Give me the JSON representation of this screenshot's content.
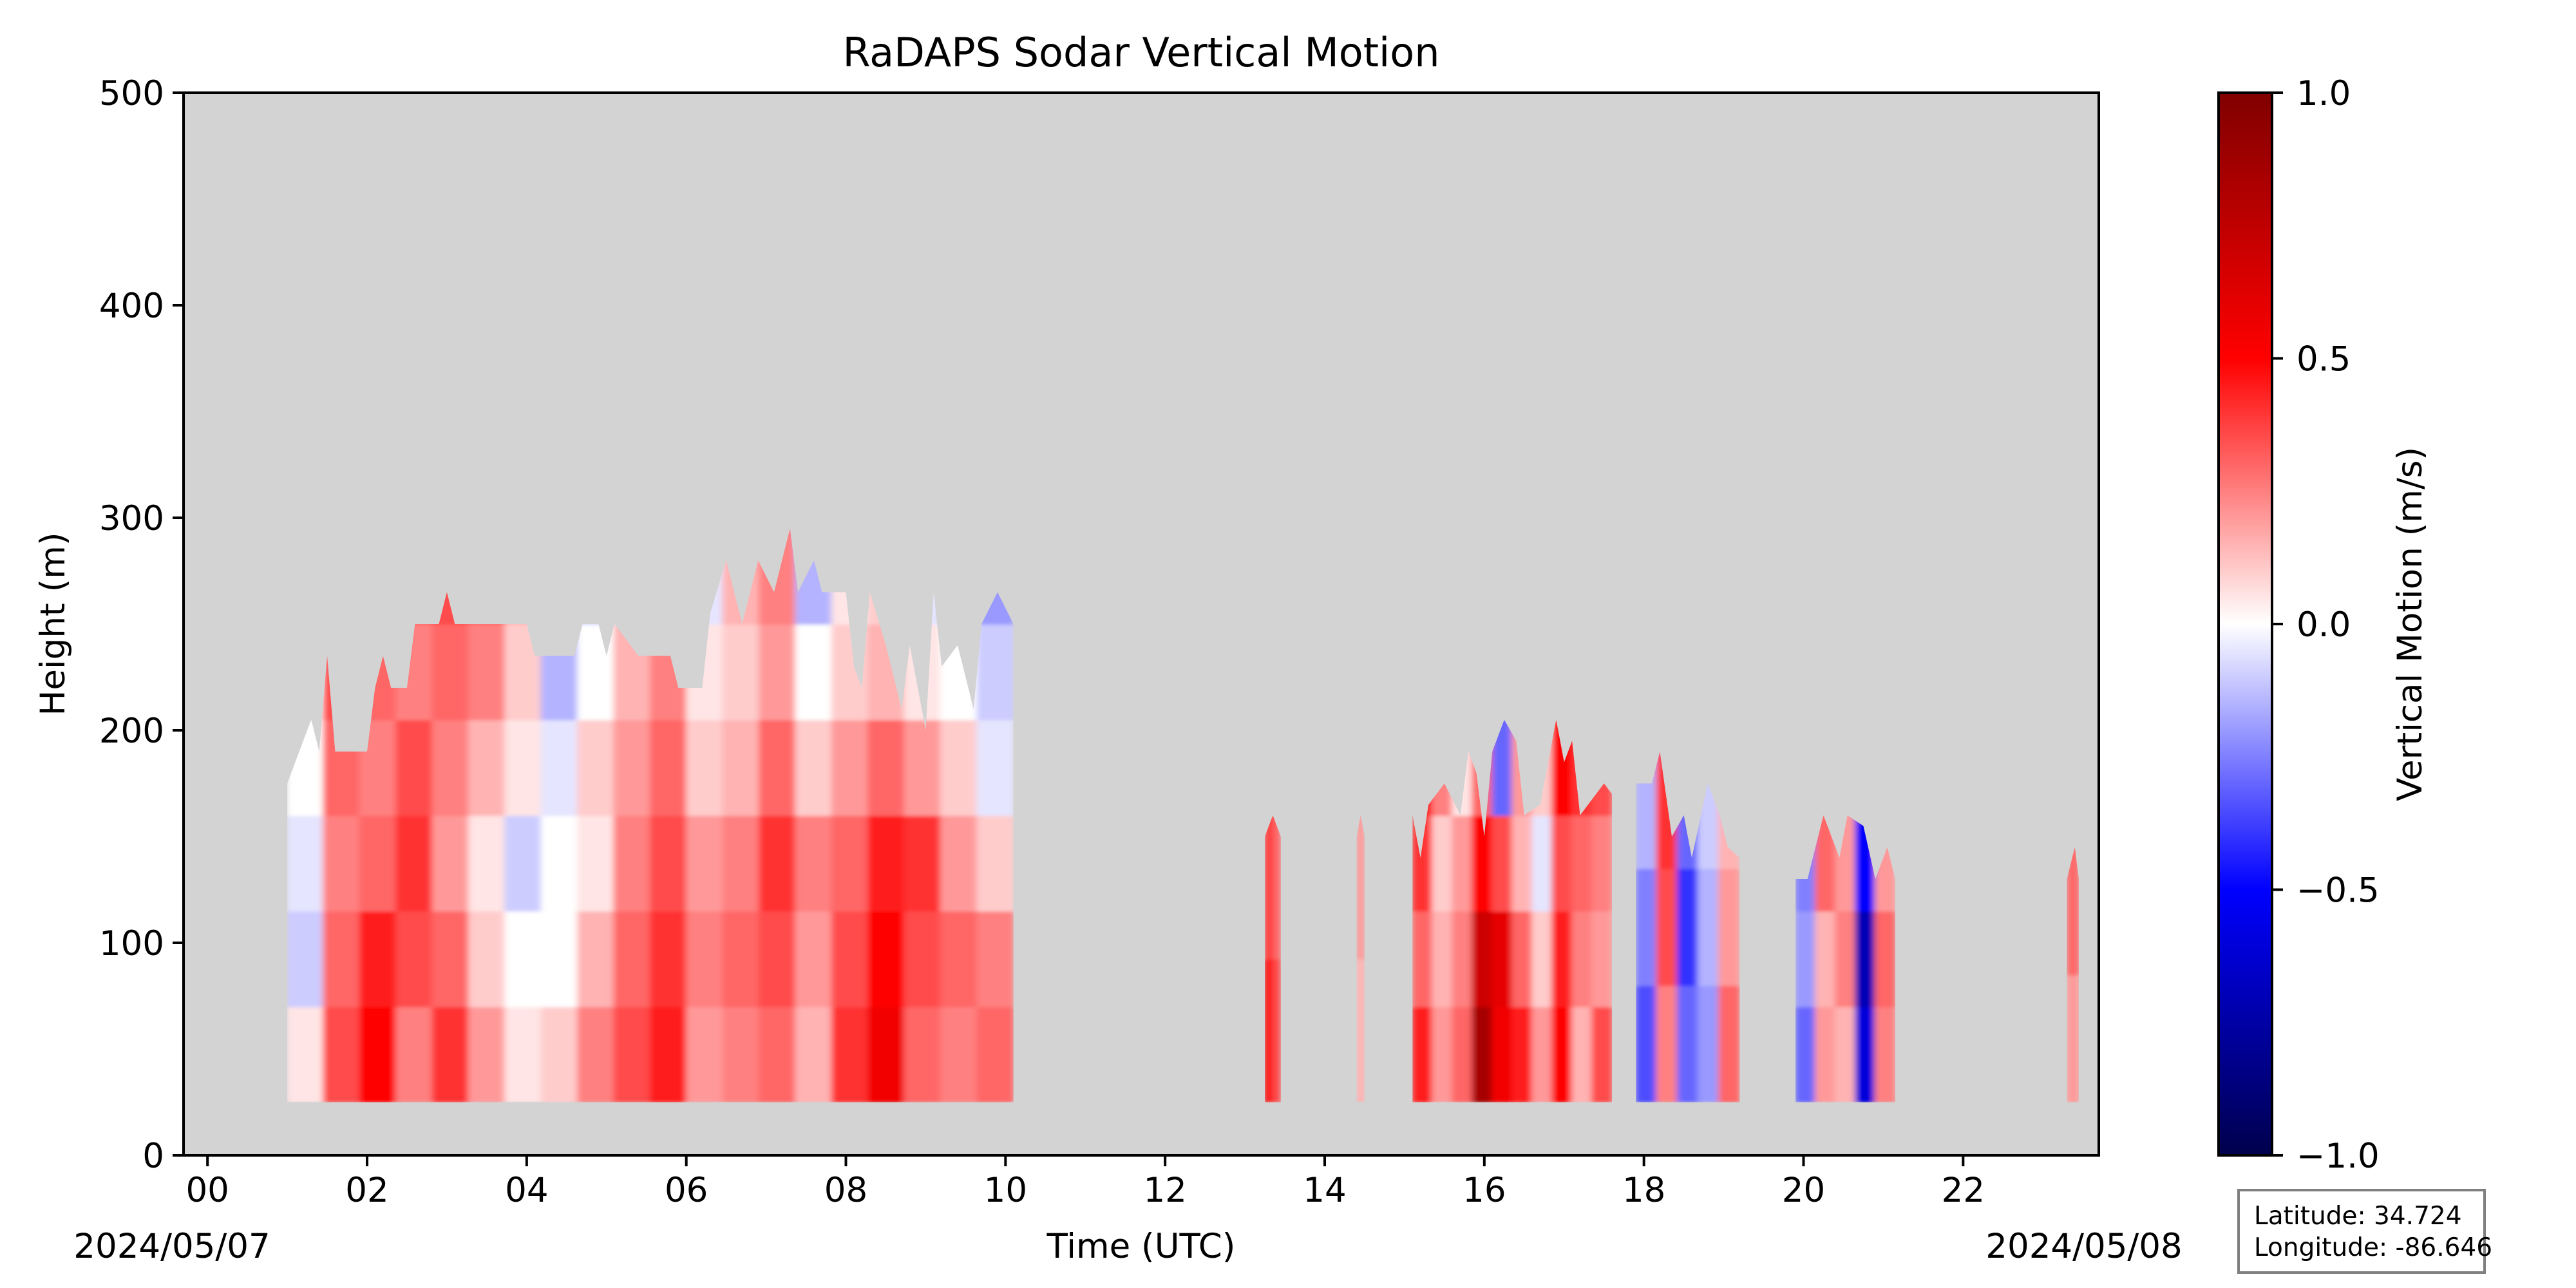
{
  "chart_data": {
    "type": "heatmap",
    "title": "RaDAPS Sodar Vertical Motion",
    "xlabel": "Time (UTC)",
    "ylabel": "Height (m)",
    "x_unit": "hours UTC",
    "xlim": [
      -0.3,
      23.7
    ],
    "ylim": [
      0,
      500
    ],
    "x_ticks": [
      0,
      2,
      4,
      6,
      8,
      10,
      12,
      14,
      16,
      18,
      20,
      22
    ],
    "x_tick_labels": [
      "00",
      "02",
      "04",
      "06",
      "08",
      "10",
      "12",
      "14",
      "16",
      "18",
      "20",
      "22"
    ],
    "y_ticks": [
      0,
      100,
      200,
      300,
      400,
      500
    ],
    "y_tick_labels": [
      "0",
      "100",
      "200",
      "300",
      "400",
      "500"
    ],
    "date_start": "2024/05/07",
    "date_end": "2024/05/08",
    "background_color": "#d3d3d3",
    "colormap": "seismic",
    "colorbar": {
      "label": "Vertical Motion (m/s)",
      "min": -1.0,
      "max": 1.0,
      "ticks": [
        1.0,
        0.5,
        0.0,
        -0.5,
        -1.0
      ],
      "tick_labels": [
        "1.0",
        "0.5",
        "0.0",
        "−0.5",
        "−1.0"
      ],
      "stops": [
        "#00004c",
        "#0000ff",
        "#ffffff",
        "#ff0000",
        "#800000"
      ]
    },
    "data_segments": [
      {
        "t_start": 1.0,
        "t_end": 10.1,
        "h_min": 25,
        "top": [
          [
            1.0,
            175
          ],
          [
            1.2,
            195
          ],
          [
            1.3,
            205
          ],
          [
            1.4,
            190
          ],
          [
            1.5,
            235
          ],
          [
            1.6,
            190
          ],
          [
            2.0,
            190
          ],
          [
            2.1,
            220
          ],
          [
            2.2,
            235
          ],
          [
            2.3,
            220
          ],
          [
            2.5,
            220
          ],
          [
            2.6,
            250
          ],
          [
            2.9,
            250
          ],
          [
            3.0,
            265
          ],
          [
            3.1,
            250
          ],
          [
            4.0,
            250
          ],
          [
            4.1,
            235
          ],
          [
            4.6,
            235
          ],
          [
            4.7,
            250
          ],
          [
            4.9,
            250
          ],
          [
            5.0,
            235
          ],
          [
            5.1,
            250
          ],
          [
            5.3,
            240
          ],
          [
            5.4,
            235
          ],
          [
            5.8,
            235
          ],
          [
            5.9,
            220
          ],
          [
            6.2,
            220
          ],
          [
            6.3,
            255
          ],
          [
            6.5,
            280
          ],
          [
            6.7,
            250
          ],
          [
            6.9,
            280
          ],
          [
            7.1,
            265
          ],
          [
            7.3,
            295
          ],
          [
            7.4,
            265
          ],
          [
            7.6,
            280
          ],
          [
            7.7,
            265
          ],
          [
            8.0,
            265
          ],
          [
            8.1,
            230
          ],
          [
            8.2,
            220
          ],
          [
            8.3,
            265
          ],
          [
            8.5,
            240
          ],
          [
            8.7,
            210
          ],
          [
            8.8,
            240
          ],
          [
            9.0,
            200
          ],
          [
            9.1,
            265
          ],
          [
            9.2,
            230
          ],
          [
            9.4,
            240
          ],
          [
            9.6,
            210
          ],
          [
            9.7,
            250
          ],
          [
            9.9,
            265
          ],
          [
            10.1,
            250
          ]
        ],
        "values": [
          [
            0.05,
            0.35,
            0.5,
            0.25,
            0.4,
            0.2,
            0.05,
            0.1,
            0.25,
            0.35,
            0.45,
            0.2,
            0.25,
            0.3,
            0.15,
            0.4,
            0.55,
            0.3,
            0.25,
            0.3
          ],
          [
            -0.1,
            0.3,
            0.45,
            0.35,
            0.3,
            0.1,
            0.0,
            0.0,
            0.15,
            0.3,
            0.4,
            0.25,
            0.3,
            0.35,
            0.2,
            0.35,
            0.5,
            0.35,
            0.3,
            0.25
          ],
          [
            -0.05,
            0.25,
            0.3,
            0.4,
            0.2,
            0.05,
            -0.1,
            0.0,
            0.05,
            0.25,
            0.35,
            0.2,
            0.25,
            0.4,
            0.25,
            0.3,
            0.45,
            0.4,
            0.2,
            0.1
          ],
          [
            0.0,
            0.3,
            0.25,
            0.35,
            0.25,
            0.15,
            0.05,
            -0.05,
            0.1,
            0.2,
            0.3,
            0.1,
            0.15,
            0.3,
            0.1,
            0.2,
            0.3,
            0.2,
            0.1,
            -0.05
          ],
          [
            0.05,
            0.35,
            0.3,
            0.25,
            0.3,
            0.25,
            0.1,
            -0.15,
            0.0,
            0.15,
            0.25,
            0.05,
            0.1,
            0.2,
            0.0,
            0.1,
            0.15,
            0.05,
            0.0,
            -0.1
          ],
          [
            0.1,
            0.4,
            0.35,
            0.3,
            0.35,
            0.3,
            0.15,
            -0.2,
            -0.1,
            0.05,
            0.2,
            -0.05,
            0.15,
            0.25,
            -0.15,
            0.05,
            0.1,
            -0.05,
            -0.15,
            -0.2
          ]
        ]
      },
      {
        "t_start": 13.25,
        "t_end": 13.45,
        "h_min": 25,
        "top": [
          [
            13.25,
            150
          ],
          [
            13.35,
            160
          ],
          [
            13.45,
            150
          ]
        ],
        "values": [
          [
            0.5,
            0.35
          ],
          [
            0.4,
            0.3
          ]
        ]
      },
      {
        "t_start": 14.4,
        "t_end": 14.5,
        "h_min": 25,
        "top": [
          [
            14.4,
            150
          ],
          [
            14.45,
            160
          ],
          [
            14.5,
            150
          ]
        ],
        "values": [
          [
            0.15
          ],
          [
            0.2
          ]
        ]
      },
      {
        "t_start": 15.1,
        "t_end": 17.6,
        "h_min": 25,
        "top": [
          [
            15.1,
            160
          ],
          [
            15.2,
            140
          ],
          [
            15.3,
            165
          ],
          [
            15.5,
            175
          ],
          [
            15.7,
            160
          ],
          [
            15.8,
            190
          ],
          [
            15.9,
            180
          ],
          [
            16.0,
            150
          ],
          [
            16.1,
            190
          ],
          [
            16.25,
            205
          ],
          [
            16.4,
            195
          ],
          [
            16.5,
            160
          ],
          [
            16.7,
            165
          ],
          [
            16.9,
            205
          ],
          [
            17.0,
            185
          ],
          [
            17.1,
            195
          ],
          [
            17.2,
            160
          ],
          [
            17.5,
            175
          ],
          [
            17.6,
            170
          ]
        ],
        "values": [
          [
            0.45,
            0.2,
            0.3,
            0.85,
            0.55,
            0.45,
            0.2,
            0.5,
            0.15,
            0.35
          ],
          [
            0.3,
            0.15,
            0.25,
            0.7,
            0.6,
            0.3,
            0.1,
            0.45,
            0.25,
            0.2
          ],
          [
            0.4,
            0.1,
            0.2,
            0.5,
            0.35,
            0.15,
            -0.05,
            0.35,
            0.3,
            0.25
          ],
          [
            0.5,
            0.25,
            0.05,
            0.3,
            -0.3,
            0.2,
            0.1,
            0.5,
            0.4,
            0.35
          ]
        ]
      },
      {
        "t_start": 17.9,
        "t_end": 19.2,
        "h_min": 25,
        "top": [
          [
            17.9,
            175
          ],
          [
            18.1,
            175
          ],
          [
            18.2,
            190
          ],
          [
            18.35,
            150
          ],
          [
            18.5,
            160
          ],
          [
            18.6,
            140
          ],
          [
            18.8,
            175
          ],
          [
            18.95,
            160
          ],
          [
            19.05,
            145
          ],
          [
            19.2,
            140
          ]
        ],
        "values": [
          [
            -0.35,
            0.25,
            -0.3,
            -0.2,
            0.3
          ],
          [
            -0.25,
            0.35,
            -0.4,
            -0.15,
            0.2
          ],
          [
            -0.15,
            0.4,
            -0.3,
            -0.1,
            0.15
          ]
        ]
      },
      {
        "t_start": 19.9,
        "t_end": 21.15,
        "h_min": 25,
        "top": [
          [
            19.9,
            130
          ],
          [
            20.05,
            130
          ],
          [
            20.25,
            160
          ],
          [
            20.45,
            140
          ],
          [
            20.55,
            160
          ],
          [
            20.75,
            155
          ],
          [
            20.9,
            130
          ],
          [
            21.05,
            145
          ],
          [
            21.15,
            130
          ]
        ],
        "values": [
          [
            -0.3,
            0.2,
            0.15,
            -0.6,
            0.25
          ],
          [
            -0.2,
            0.15,
            0.25,
            -0.7,
            0.3
          ],
          [
            -0.25,
            0.3,
            0.2,
            -0.5,
            0.2
          ]
        ]
      },
      {
        "t_start": 23.3,
        "t_end": 23.45,
        "h_min": 25,
        "top": [
          [
            23.3,
            130
          ],
          [
            23.4,
            145
          ],
          [
            23.45,
            130
          ]
        ],
        "values": [
          [
            0.2
          ],
          [
            0.3
          ]
        ]
      }
    ]
  },
  "info": {
    "latitude": "Latitude: 34.724",
    "longitude": "Longitude: -86.646"
  }
}
